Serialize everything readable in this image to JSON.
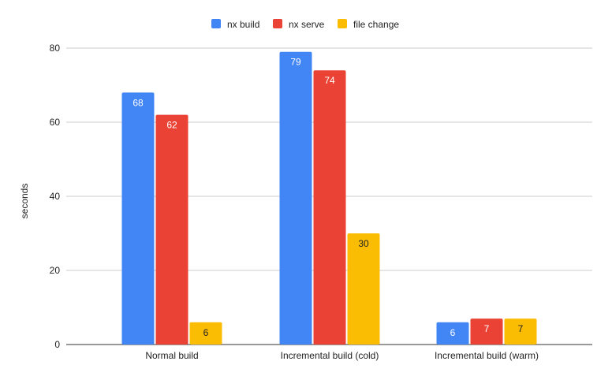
{
  "chart_data": {
    "type": "bar",
    "title": "",
    "xlabel": "",
    "ylabel": "seconds",
    "ylim": [
      0,
      80
    ],
    "yticks": [
      0,
      20,
      40,
      60,
      80
    ],
    "grid": true,
    "legend_position": "top",
    "categories": [
      "Normal build",
      "Incremental build (cold)",
      "Incremental build (warm)"
    ],
    "series": [
      {
        "name": "nx build",
        "color": "#4285f4",
        "label_color": "#ffffff",
        "values": [
          68,
          79,
          6
        ]
      },
      {
        "name": "nx serve",
        "color": "#ea4335",
        "label_color": "#ffffff",
        "values": [
          62,
          74,
          7
        ]
      },
      {
        "name": "file change",
        "color": "#fbbc04",
        "label_color": "#222222",
        "values": [
          6,
          30,
          7
        ]
      }
    ]
  }
}
